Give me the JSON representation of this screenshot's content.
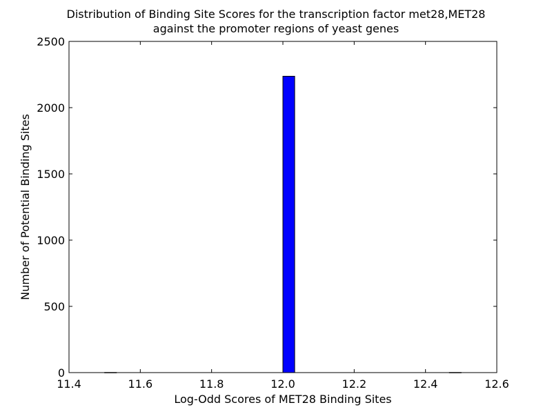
{
  "chart_data": {
    "type": "bar",
    "title": "Distribution of Binding Site Scores for the transcription factor met28,MET28",
    "subtitle": "against the promoter regions of yeast genes",
    "xlabel": "Log-Odd Scores of MET28 Binding Sites",
    "ylabel": "Number of Potential Binding Sites",
    "xlim": [
      11.4,
      12.6
    ],
    "ylim": [
      0,
      2500
    ],
    "xticks": [
      "11.4",
      "11.6",
      "11.8",
      "12.0",
      "12.2",
      "12.4",
      "12.6"
    ],
    "yticks": [
      "0",
      "500",
      "1000",
      "1500",
      "2000",
      "2500"
    ],
    "grid": false,
    "bins": [
      {
        "x0": 11.5,
        "x1": 11.533,
        "value": 1
      },
      {
        "x0": 12.0,
        "x1": 12.033,
        "value": 2237
      },
      {
        "x0": 12.467,
        "x1": 12.5,
        "value": 1
      }
    ],
    "colors": {
      "bar": "#0000ff",
      "edge": "#000000",
      "axes": "#000000"
    }
  }
}
